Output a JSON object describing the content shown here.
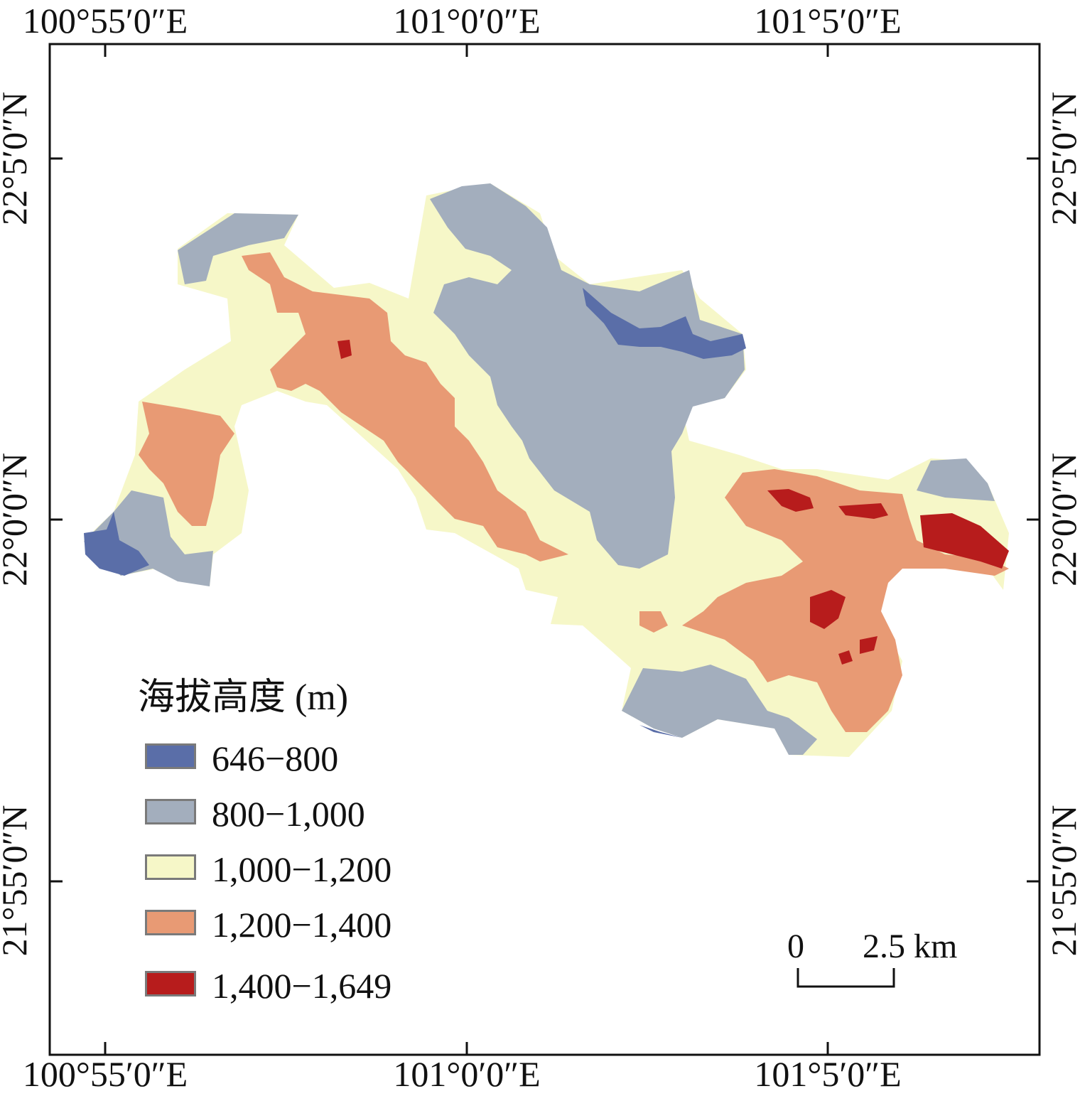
{
  "map": {
    "top_labels": [
      "100°55′0″E",
      "101°0′0″E",
      "101°5′0″E"
    ],
    "bottom_labels": [
      "100°55′0″E",
      "101°0′0″E",
      "101°5′0″E"
    ],
    "left_labels": [
      "22°5′0″N",
      "22°0′0″N",
      "21°55′0″N"
    ],
    "right_labels": [
      "22°5′0″N",
      "22°0′0″N",
      "21°55′0″N"
    ]
  },
  "legend": {
    "title": "海拔高度 (m)",
    "items": [
      {
        "label": "646−800",
        "color": "#5a6ea8"
      },
      {
        "label": "800−1,000",
        "color": "#a3aebd"
      },
      {
        "label": "1,000−1,200",
        "color": "#f6f7c8"
      },
      {
        "label": "1,200−1,400",
        "color": "#e89a74"
      },
      {
        "label": "1,400−1,649",
        "color": "#b71c1c"
      }
    ]
  },
  "scalebar": {
    "start": "0",
    "end": "2.5 km"
  }
}
